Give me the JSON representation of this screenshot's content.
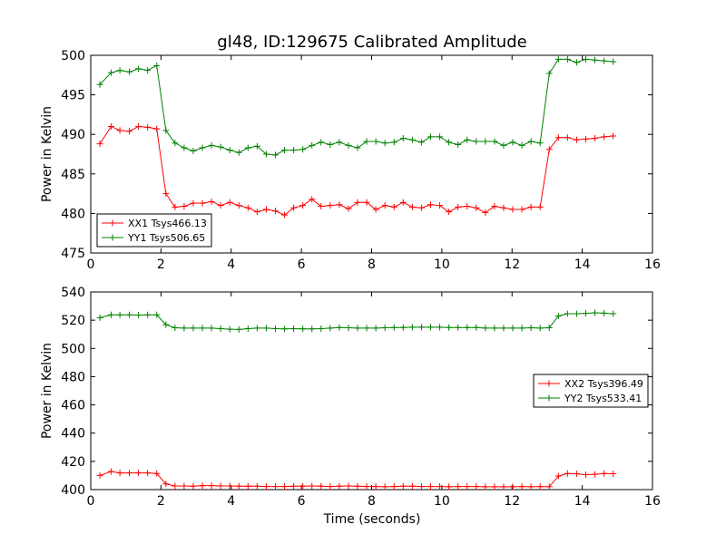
{
  "chart_data": [
    {
      "type": "line",
      "title": "gl48, ID:129675 Calibrated Amplitude",
      "xlabel": "",
      "ylabel": "Power in Kelvin",
      "xlim": [
        0,
        16
      ],
      "ylim": [
        475,
        500
      ],
      "xticks": [
        0,
        2,
        4,
        6,
        8,
        10,
        12,
        14,
        16
      ],
      "yticks": [
        475,
        480,
        485,
        490,
        495,
        500
      ],
      "legend_position": "lower-left",
      "series": [
        {
          "name": "XX1 Tsys466.13",
          "color": "#ff0000",
          "x": [
            0.26,
            0.58,
            0.83,
            1.1,
            1.36,
            1.62,
            1.88,
            2.14,
            2.4,
            2.66,
            2.92,
            3.18,
            3.44,
            3.7,
            3.96,
            4.22,
            4.48,
            4.74,
            5.0,
            5.26,
            5.52,
            5.78,
            6.04,
            6.3,
            6.56,
            6.82,
            7.08,
            7.34,
            7.6,
            7.86,
            8.12,
            8.38,
            8.64,
            8.9,
            9.16,
            9.42,
            9.68,
            9.94,
            10.2,
            10.46,
            10.72,
            10.98,
            11.24,
            11.5,
            11.76,
            12.02,
            12.28,
            12.54,
            12.8,
            13.06,
            13.32,
            13.58,
            13.84,
            14.1,
            14.36,
            14.62,
            14.88
          ],
          "values": [
            488.8,
            491.0,
            490.5,
            490.4,
            491.0,
            490.9,
            490.7,
            482.5,
            480.8,
            480.9,
            481.3,
            481.3,
            481.5,
            481.0,
            481.4,
            481.0,
            480.7,
            480.2,
            480.5,
            480.3,
            479.8,
            480.7,
            481.0,
            481.8,
            480.9,
            481.0,
            481.1,
            480.6,
            481.4,
            481.4,
            480.5,
            481.0,
            480.8,
            481.4,
            480.8,
            480.7,
            481.1,
            481.0,
            480.2,
            480.8,
            480.9,
            480.7,
            480.1,
            480.9,
            480.7,
            480.5,
            480.5,
            480.8,
            480.8,
            488.1,
            489.6,
            489.6,
            489.3,
            489.4,
            489.5,
            489.7,
            489.8
          ]
        },
        {
          "name": "YY1 Tsys506.65",
          "color": "#008000",
          "x": [
            0.26,
            0.58,
            0.83,
            1.1,
            1.36,
            1.62,
            1.88,
            2.14,
            2.4,
            2.66,
            2.92,
            3.18,
            3.44,
            3.7,
            3.96,
            4.22,
            4.48,
            4.74,
            5.0,
            5.26,
            5.52,
            5.78,
            6.04,
            6.3,
            6.56,
            6.82,
            7.08,
            7.34,
            7.6,
            7.86,
            8.12,
            8.38,
            8.64,
            8.9,
            9.16,
            9.42,
            9.68,
            9.94,
            10.2,
            10.46,
            10.72,
            10.98,
            11.24,
            11.5,
            11.76,
            12.02,
            12.28,
            12.54,
            12.8,
            13.06,
            13.32,
            13.58,
            13.84,
            14.1,
            14.36,
            14.62,
            14.88
          ],
          "values": [
            496.3,
            497.8,
            498.1,
            497.9,
            498.3,
            498.1,
            498.7,
            490.5,
            488.9,
            488.3,
            487.9,
            488.3,
            488.6,
            488.4,
            488.0,
            487.7,
            488.3,
            488.5,
            487.5,
            487.4,
            488.0,
            488.0,
            488.1,
            488.6,
            489.0,
            488.7,
            489.0,
            488.6,
            488.3,
            489.1,
            489.1,
            488.9,
            489.0,
            489.5,
            489.3,
            489.0,
            489.7,
            489.7,
            489.0,
            488.7,
            489.3,
            489.1,
            489.1,
            489.1,
            488.6,
            489.0,
            488.6,
            489.1,
            488.9,
            497.7,
            499.5,
            499.5,
            499.1,
            499.5,
            499.4,
            499.3,
            499.2
          ]
        }
      ]
    },
    {
      "type": "line",
      "title": "",
      "xlabel": "Time (seconds)",
      "ylabel": "Power in Kelvin",
      "xlim": [
        0,
        16
      ],
      "ylim": [
        400,
        540
      ],
      "xticks": [
        0,
        2,
        4,
        6,
        8,
        10,
        12,
        14,
        16
      ],
      "yticks": [
        400,
        420,
        440,
        460,
        480,
        500,
        520,
        540
      ],
      "legend_position": "center-right",
      "series": [
        {
          "name": "XX2 Tsys396.49",
          "color": "#ff0000",
          "x": [
            0.26,
            0.58,
            0.83,
            1.1,
            1.36,
            1.62,
            1.88,
            2.14,
            2.4,
            2.66,
            2.92,
            3.18,
            3.44,
            3.7,
            3.96,
            4.22,
            4.48,
            4.74,
            5.0,
            5.26,
            5.52,
            5.78,
            6.04,
            6.3,
            6.56,
            6.82,
            7.08,
            7.34,
            7.6,
            7.86,
            8.12,
            8.38,
            8.64,
            8.9,
            9.16,
            9.42,
            9.68,
            9.94,
            10.2,
            10.46,
            10.72,
            10.98,
            11.24,
            11.5,
            11.76,
            12.02,
            12.28,
            12.54,
            12.8,
            13.06,
            13.32,
            13.58,
            13.84,
            14.1,
            14.36,
            14.62,
            14.88
          ],
          "values": [
            410.0,
            412.8,
            411.8,
            411.8,
            411.8,
            411.8,
            411.4,
            404.0,
            402.6,
            402.6,
            402.4,
            402.8,
            402.8,
            402.6,
            402.6,
            402.4,
            402.4,
            402.4,
            402.2,
            402.2,
            402.2,
            402.4,
            402.4,
            402.6,
            402.4,
            402.2,
            402.4,
            402.6,
            402.4,
            402.2,
            402.2,
            402.0,
            402.2,
            402.4,
            402.4,
            402.2,
            402.2,
            402.2,
            402.0,
            402.2,
            402.2,
            402.2,
            402.0,
            402.0,
            402.0,
            402.0,
            402.2,
            402.0,
            402.2,
            402.0,
            409.6,
            411.4,
            411.2,
            410.6,
            410.8,
            411.4,
            411.2
          ]
        },
        {
          "name": "YY2 Tsys533.41",
          "color": "#008000",
          "x": [
            0.26,
            0.58,
            0.83,
            1.1,
            1.36,
            1.62,
            1.88,
            2.14,
            2.4,
            2.66,
            2.92,
            3.18,
            3.44,
            3.7,
            3.96,
            4.22,
            4.48,
            4.74,
            5.0,
            5.26,
            5.52,
            5.78,
            6.04,
            6.3,
            6.56,
            6.82,
            7.08,
            7.34,
            7.6,
            7.86,
            8.12,
            8.38,
            8.64,
            8.9,
            9.16,
            9.42,
            9.68,
            9.94,
            10.2,
            10.46,
            10.72,
            10.98,
            11.24,
            11.5,
            11.76,
            12.02,
            12.28,
            12.54,
            12.8,
            13.06,
            13.32,
            13.58,
            13.84,
            14.1,
            14.36,
            14.62,
            14.88
          ],
          "values": [
            521.8,
            523.8,
            523.8,
            523.8,
            523.6,
            523.8,
            523.8,
            516.8,
            514.6,
            514.4,
            514.4,
            514.4,
            514.4,
            514.0,
            513.6,
            513.4,
            514.0,
            514.4,
            514.4,
            514.0,
            513.8,
            514.0,
            513.8,
            513.8,
            514.0,
            514.4,
            514.8,
            514.6,
            514.4,
            514.4,
            514.4,
            514.6,
            514.8,
            514.8,
            515.0,
            515.0,
            515.0,
            515.0,
            514.8,
            514.8,
            514.8,
            514.8,
            514.4,
            514.4,
            514.4,
            514.4,
            514.4,
            514.6,
            514.4,
            514.6,
            523.0,
            524.6,
            524.6,
            524.8,
            525.2,
            525.0,
            524.6
          ]
        }
      ]
    }
  ]
}
